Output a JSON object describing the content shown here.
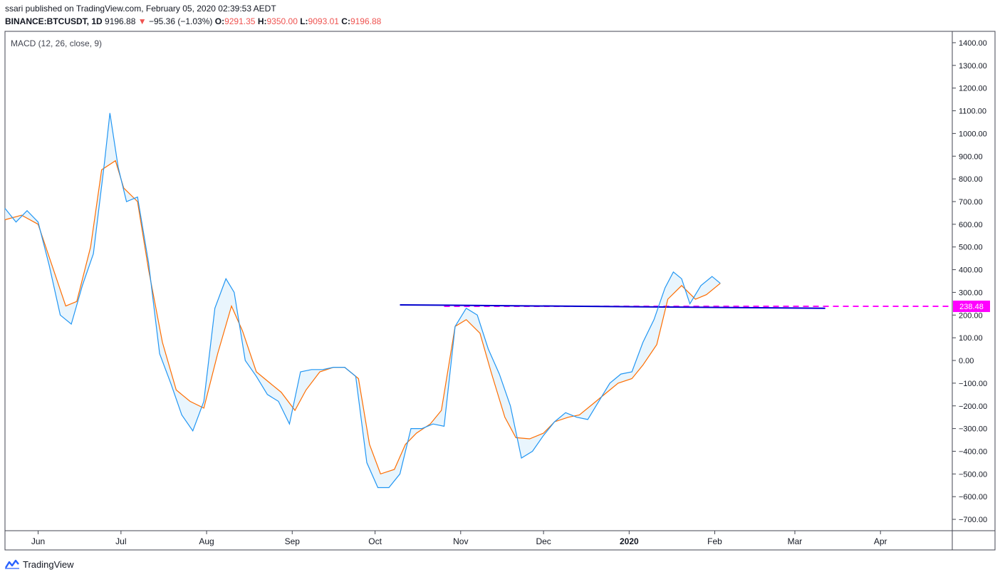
{
  "header": {
    "line1": "ssari published on TradingView.com, February 05, 2020 02:39:53 AEDT",
    "symbol": "BINANCE:BTCUSDT, 1D",
    "price": "9196.88",
    "arrow": "▼",
    "change": "−95.36 (−1.03%)",
    "o_label": "O:",
    "o_value": "9291.35",
    "h_label": "H:",
    "h_value": "9350.00",
    "l_label": "L:",
    "l_value": "9093.01",
    "c_label": "C:",
    "c_value": "9196.88"
  },
  "footer": {
    "brand": "TradingView"
  },
  "colors": {
    "macd": "#2196f3",
    "signal": "#ff6d00",
    "fill": "#e3f2fd",
    "trendline": "#0000cd",
    "level": "#ff00ff"
  },
  "chart_data": {
    "type": "line",
    "title": "MACD (12, 26, close, 9)",
    "ylim": [
      -750,
      1450
    ],
    "y_ticks": [
      "1400.00",
      "1300.00",
      "1200.00",
      "1100.00",
      "1000.00",
      "900.00",
      "800.00",
      "700.00",
      "600.00",
      "500.00",
      "400.00",
      "300.00",
      "200.00",
      "100.00",
      "0.00",
      "−100.00",
      "−200.00",
      "−300.00",
      "−400.00",
      "−500.00",
      "−600.00",
      "−700.00"
    ],
    "x_ticks": [
      {
        "label": "Jun",
        "date": "2019-06-01"
      },
      {
        "label": "Jul",
        "date": "2019-07-01"
      },
      {
        "label": "Aug",
        "date": "2019-08-01"
      },
      {
        "label": "Sep",
        "date": "2019-09-01"
      },
      {
        "label": "Oct",
        "date": "2019-10-01"
      },
      {
        "label": "Nov",
        "date": "2019-11-01"
      },
      {
        "label": "Dec",
        "date": "2019-12-01"
      },
      {
        "label": "2020",
        "date": "2020-01-01",
        "bold": true
      },
      {
        "label": "Feb",
        "date": "2020-02-01"
      },
      {
        "label": "Mar",
        "date": "2020-03-01"
      },
      {
        "label": "Apr",
        "date": "2020-04-01"
      }
    ],
    "x_range": [
      "2019-05-20",
      "2020-04-27"
    ],
    "series": [
      {
        "key": "macd",
        "x": [
          "2019-05-20",
          "2019-05-24",
          "2019-05-28",
          "2019-06-01",
          "2019-06-05",
          "2019-06-09",
          "2019-06-13",
          "2019-06-17",
          "2019-06-21",
          "2019-06-25",
          "2019-06-27",
          "2019-06-30",
          "2019-07-03",
          "2019-07-07",
          "2019-07-11",
          "2019-07-15",
          "2019-07-19",
          "2019-07-23",
          "2019-07-27",
          "2019-07-31",
          "2019-08-04",
          "2019-08-08",
          "2019-08-11",
          "2019-08-15",
          "2019-08-19",
          "2019-08-23",
          "2019-08-27",
          "2019-08-31",
          "2019-09-04",
          "2019-09-08",
          "2019-09-12",
          "2019-09-16",
          "2019-09-20",
          "2019-09-24",
          "2019-09-28",
          "2019-10-02",
          "2019-10-06",
          "2019-10-10",
          "2019-10-14",
          "2019-10-18",
          "2019-10-22",
          "2019-10-26",
          "2019-10-30",
          "2019-11-03",
          "2019-11-07",
          "2019-11-11",
          "2019-11-15",
          "2019-11-19",
          "2019-11-23",
          "2019-11-27",
          "2019-12-01",
          "2019-12-05",
          "2019-12-09",
          "2019-12-13",
          "2019-12-17",
          "2019-12-21",
          "2019-12-25",
          "2019-12-29",
          "2020-01-02",
          "2020-01-06",
          "2020-01-10",
          "2020-01-14",
          "2020-01-17",
          "2020-01-20",
          "2020-01-23",
          "2020-01-27",
          "2020-01-31",
          "2020-02-03"
        ],
        "values": [
          670,
          610,
          660,
          610,
          420,
          200,
          160,
          330,
          470,
          870,
          1090,
          850,
          700,
          720,
          430,
          30,
          -100,
          -240,
          -310,
          -180,
          230,
          360,
          300,
          0,
          -70,
          -150,
          -180,
          -280,
          -50,
          -40,
          -40,
          -30,
          -30,
          -70,
          -450,
          -560,
          -560,
          -500,
          -300,
          -300,
          -280,
          -290,
          150,
          230,
          200,
          50,
          -60,
          -200,
          -430,
          -400,
          -330,
          -270,
          -230,
          -250,
          -260,
          -180,
          -100,
          -60,
          -50,
          80,
          180,
          320,
          390,
          360,
          250,
          330,
          370,
          340
        ]
      },
      {
        "key": "signal",
        "x": [
          "2019-05-20",
          "2019-05-26",
          "2019-06-01",
          "2019-06-06",
          "2019-06-11",
          "2019-06-15",
          "2019-06-20",
          "2019-06-24",
          "2019-06-29",
          "2019-07-02",
          "2019-07-07",
          "2019-07-11",
          "2019-07-16",
          "2019-07-21",
          "2019-07-26",
          "2019-07-31",
          "2019-08-05",
          "2019-08-10",
          "2019-08-14",
          "2019-08-19",
          "2019-08-24",
          "2019-08-28",
          "2019-09-02",
          "2019-09-06",
          "2019-09-11",
          "2019-09-16",
          "2019-09-20",
          "2019-09-25",
          "2019-09-29",
          "2019-10-03",
          "2019-10-08",
          "2019-10-12",
          "2019-10-16",
          "2019-10-21",
          "2019-10-25",
          "2019-10-30",
          "2019-11-03",
          "2019-11-08",
          "2019-11-12",
          "2019-11-17",
          "2019-11-21",
          "2019-11-26",
          "2019-12-01",
          "2019-12-05",
          "2019-12-10",
          "2019-12-14",
          "2019-12-19",
          "2019-12-24",
          "2019-12-28",
          "2020-01-02",
          "2020-01-06",
          "2020-01-11",
          "2020-01-15",
          "2020-01-20",
          "2020-01-25",
          "2020-01-29",
          "2020-02-03"
        ],
        "values": [
          620,
          640,
          600,
          420,
          240,
          260,
          500,
          840,
          880,
          760,
          700,
          400,
          80,
          -130,
          -180,
          -210,
          30,
          240,
          130,
          -50,
          -100,
          -140,
          -220,
          -130,
          -50,
          -30,
          -30,
          -80,
          -370,
          -500,
          -480,
          -370,
          -320,
          -280,
          -220,
          150,
          180,
          120,
          -50,
          -250,
          -340,
          -345,
          -320,
          -270,
          -250,
          -240,
          -190,
          -140,
          -100,
          -80,
          -20,
          70,
          270,
          330,
          270,
          290,
          340
        ]
      }
    ],
    "trendline": {
      "x": [
        "2019-10-10",
        "2020-03-12"
      ],
      "y": [
        245,
        230
      ]
    },
    "level": {
      "value": 238.48,
      "label": "238.48",
      "x_start": "2019-10-26"
    }
  }
}
